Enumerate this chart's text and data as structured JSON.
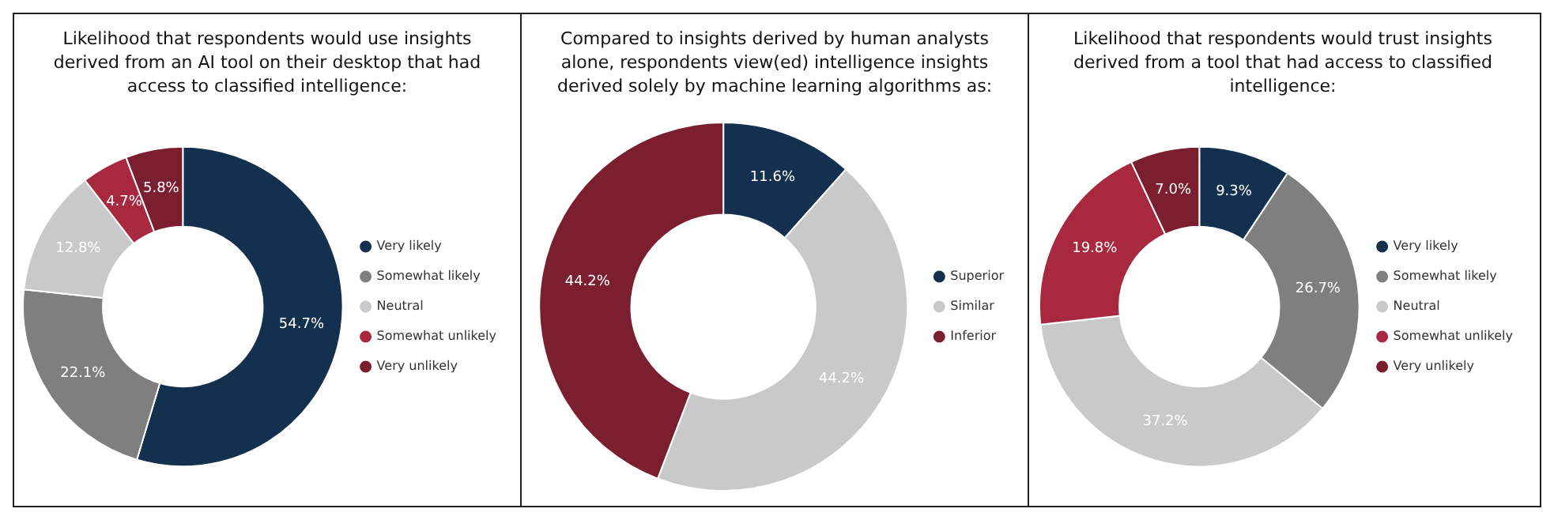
{
  "chart_data": [
    {
      "type": "donut",
      "title": "Likelihood that respondents would use insights derived from an AI tool on their desktop that had access to classified intelligence:",
      "categories": [
        "Very likely",
        "Somewhat likely",
        "Neutral",
        "Somewhat unlikely",
        "Very unlikely"
      ],
      "values": [
        54.7,
        22.1,
        12.8,
        4.7,
        5.8
      ],
      "value_labels": [
        "54.7%",
        "22.1%",
        "12.8%",
        "4.7%",
        "5.8%"
      ],
      "colors": [
        "#14304f",
        "#7f7f7f",
        "#c9c9c9",
        "#a8293f",
        "#7b1f2f"
      ],
      "legend": "right"
    },
    {
      "type": "donut",
      "title": "Compared to insights derived by human analysts alone, respondents view(ed) intelligence insights derived solely by machine learning algorithms as:",
      "categories": [
        "Superior",
        "Similar",
        "Inferior"
      ],
      "values": [
        11.6,
        44.2,
        44.2
      ],
      "value_labels": [
        "11.6%",
        "44.2%",
        "44.2%"
      ],
      "colors": [
        "#14304f",
        "#c9c9c9",
        "#7b1f2f"
      ],
      "legend": "right"
    },
    {
      "type": "donut",
      "title": "Likelihood that respondents would trust insights derived from a tool that had access to classified intelligence:",
      "categories": [
        "Very likely",
        "Somewhat likely",
        "Neutral",
        "Somewhat unlikely",
        "Very unlikely"
      ],
      "values": [
        9.3,
        26.7,
        37.2,
        19.8,
        7.0
      ],
      "value_labels": [
        "9.3%",
        "26.7%",
        "37.2%",
        "19.8%",
        "7.0%"
      ],
      "colors": [
        "#14304f",
        "#7f7f7f",
        "#c9c9c9",
        "#a8293f",
        "#7b1f2f"
      ],
      "legend": "right"
    }
  ]
}
